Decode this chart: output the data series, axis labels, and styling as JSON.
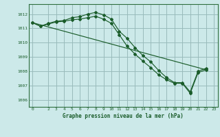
{
  "background_color": "#cce9e9",
  "grid_color": "#99bbbb",
  "line_color": "#1a5c2a",
  "spine_color": "#2d6e3e",
  "title": "Graphe pression niveau de la mer (hPa)",
  "xlim": [
    -0.5,
    23.5
  ],
  "ylim": [
    1005.5,
    1012.7
  ],
  "yticks": [
    1006,
    1007,
    1008,
    1009,
    1010,
    1011,
    1012
  ],
  "xticks": [
    0,
    2,
    3,
    4,
    5,
    6,
    7,
    8,
    9,
    10,
    11,
    12,
    13,
    14,
    15,
    16,
    17,
    18,
    19,
    20,
    21,
    22,
    23
  ],
  "line1_x": [
    0,
    1,
    2,
    3,
    4,
    5,
    6,
    7,
    8,
    9,
    10,
    11,
    12,
    13,
    14,
    15,
    16,
    17,
    18,
    19,
    20,
    21,
    22
  ],
  "line1_y": [
    1011.4,
    1011.15,
    1011.35,
    1011.5,
    1011.55,
    1011.75,
    1011.82,
    1012.0,
    1012.12,
    1011.95,
    1011.65,
    1010.8,
    1010.3,
    1009.65,
    1009.1,
    1008.65,
    1008.05,
    1007.55,
    1007.2,
    1007.2,
    1006.55,
    1008.0,
    1008.2
  ],
  "line2_x": [
    0,
    1,
    2,
    3,
    4,
    5,
    6,
    7,
    8,
    9,
    10,
    11,
    12,
    13,
    14,
    15,
    16,
    17,
    18,
    19,
    20,
    21,
    22
  ],
  "line2_y": [
    1011.4,
    1011.15,
    1011.3,
    1011.45,
    1011.5,
    1011.6,
    1011.65,
    1011.75,
    1011.85,
    1011.65,
    1011.35,
    1010.55,
    1009.75,
    1009.2,
    1008.7,
    1008.25,
    1007.75,
    1007.4,
    1007.15,
    1007.15,
    1006.45,
    1007.9,
    1008.1
  ],
  "line3_x": [
    0,
    22
  ],
  "line3_y": [
    1011.4,
    1008.1
  ]
}
